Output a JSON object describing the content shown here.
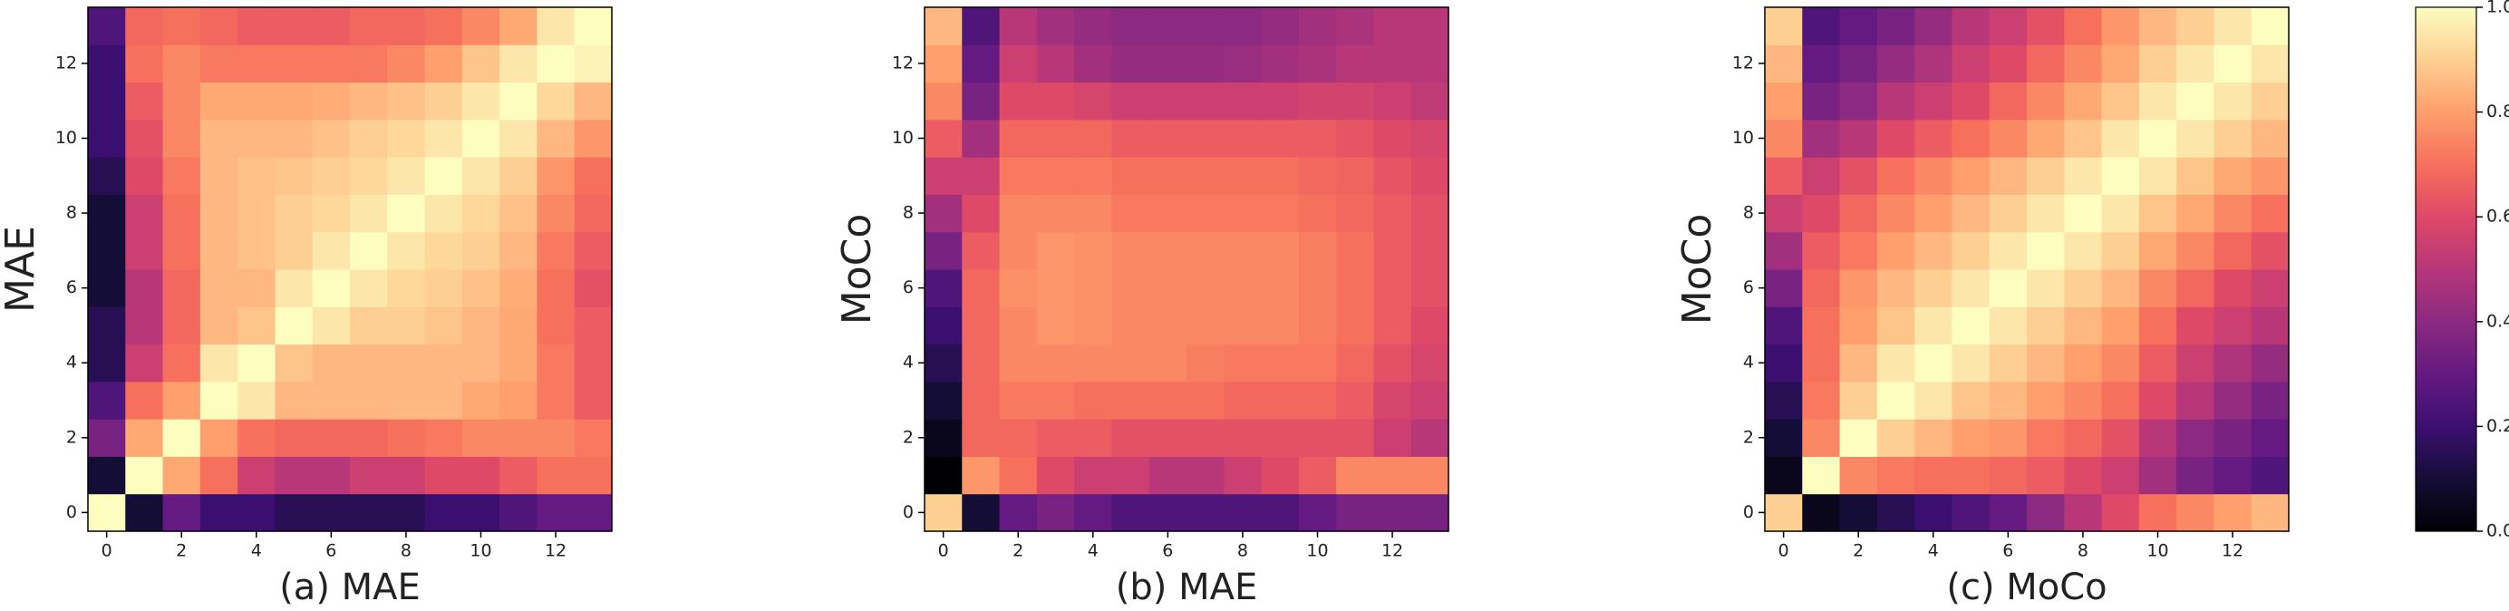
{
  "chart_data": [
    {
      "type": "heatmap",
      "title": "(a) MAE",
      "y_label": "MAE",
      "xlim": [
        -0.5,
        13.5
      ],
      "ylim": [
        -0.5,
        13.5
      ],
      "xticks": [
        0,
        2,
        4,
        6,
        8,
        10,
        12
      ],
      "yticks": [
        0,
        2,
        4,
        6,
        8,
        10,
        12
      ],
      "values": [
        [
          1.0,
          0.1,
          0.3,
          0.2,
          0.2,
          0.15,
          0.15,
          0.15,
          0.15,
          0.2,
          0.2,
          0.25,
          0.3,
          0.3
        ],
        [
          0.1,
          1.0,
          0.82,
          0.7,
          0.55,
          0.5,
          0.5,
          0.55,
          0.55,
          0.6,
          0.6,
          0.65,
          0.7,
          0.7
        ],
        [
          0.35,
          0.82,
          1.0,
          0.8,
          0.7,
          0.68,
          0.68,
          0.68,
          0.7,
          0.72,
          0.75,
          0.75,
          0.75,
          0.72
        ],
        [
          0.25,
          0.7,
          0.8,
          1.0,
          0.95,
          0.85,
          0.85,
          0.85,
          0.85,
          0.85,
          0.82,
          0.8,
          0.72,
          0.65
        ],
        [
          0.15,
          0.55,
          0.7,
          0.95,
          1.0,
          0.88,
          0.85,
          0.85,
          0.85,
          0.85,
          0.85,
          0.82,
          0.72,
          0.65
        ],
        [
          0.15,
          0.5,
          0.68,
          0.85,
          0.88,
          1.0,
          0.95,
          0.9,
          0.9,
          0.88,
          0.85,
          0.82,
          0.7,
          0.65
        ],
        [
          0.1,
          0.5,
          0.68,
          0.85,
          0.85,
          0.95,
          1.0,
          0.95,
          0.92,
          0.9,
          0.87,
          0.83,
          0.7,
          0.62
        ],
        [
          0.1,
          0.55,
          0.7,
          0.85,
          0.87,
          0.9,
          0.95,
          1.0,
          0.95,
          0.92,
          0.9,
          0.85,
          0.72,
          0.65
        ],
        [
          0.1,
          0.55,
          0.7,
          0.85,
          0.87,
          0.9,
          0.92,
          0.95,
          1.0,
          0.95,
          0.92,
          0.87,
          0.75,
          0.68
        ],
        [
          0.15,
          0.6,
          0.72,
          0.85,
          0.87,
          0.88,
          0.9,
          0.92,
          0.95,
          1.0,
          0.95,
          0.9,
          0.78,
          0.7
        ],
        [
          0.2,
          0.62,
          0.75,
          0.85,
          0.85,
          0.85,
          0.87,
          0.9,
          0.92,
          0.95,
          1.0,
          0.95,
          0.85,
          0.78
        ],
        [
          0.2,
          0.65,
          0.75,
          0.82,
          0.82,
          0.82,
          0.83,
          0.85,
          0.87,
          0.9,
          0.95,
          1.0,
          0.92,
          0.85
        ],
        [
          0.2,
          0.7,
          0.75,
          0.72,
          0.72,
          0.72,
          0.72,
          0.72,
          0.75,
          0.8,
          0.88,
          0.95,
          1.0,
          0.98
        ],
        [
          0.25,
          0.68,
          0.7,
          0.68,
          0.65,
          0.65,
          0.65,
          0.68,
          0.68,
          0.7,
          0.75,
          0.82,
          0.95,
          1.0
        ]
      ]
    },
    {
      "type": "heatmap",
      "title": "(b) MAE",
      "y_label": "MoCo",
      "xlim": [
        -0.5,
        13.5
      ],
      "ylim": [
        -0.5,
        13.5
      ],
      "xticks": [
        0,
        2,
        4,
        6,
        8,
        10,
        12
      ],
      "yticks": [
        0,
        2,
        4,
        6,
        8,
        10,
        12
      ],
      "values": [
        [
          0.9,
          0.1,
          0.3,
          0.35,
          0.3,
          0.25,
          0.25,
          0.25,
          0.25,
          0.25,
          0.3,
          0.35,
          0.35,
          0.35
        ],
        [
          0.0,
          0.78,
          0.7,
          0.6,
          0.55,
          0.55,
          0.5,
          0.5,
          0.55,
          0.6,
          0.65,
          0.75,
          0.75,
          0.75
        ],
        [
          0.05,
          0.68,
          0.68,
          0.65,
          0.65,
          0.62,
          0.62,
          0.62,
          0.62,
          0.62,
          0.62,
          0.62,
          0.55,
          0.5
        ],
        [
          0.1,
          0.68,
          0.72,
          0.72,
          0.7,
          0.7,
          0.7,
          0.7,
          0.68,
          0.68,
          0.68,
          0.65,
          0.58,
          0.55
        ],
        [
          0.15,
          0.68,
          0.75,
          0.75,
          0.75,
          0.75,
          0.75,
          0.73,
          0.72,
          0.72,
          0.72,
          0.68,
          0.62,
          0.58
        ],
        [
          0.2,
          0.68,
          0.75,
          0.78,
          0.77,
          0.75,
          0.75,
          0.75,
          0.75,
          0.75,
          0.73,
          0.7,
          0.65,
          0.6
        ],
        [
          0.25,
          0.68,
          0.77,
          0.78,
          0.77,
          0.75,
          0.75,
          0.75,
          0.75,
          0.75,
          0.73,
          0.7,
          0.65,
          0.62
        ],
        [
          0.35,
          0.65,
          0.75,
          0.78,
          0.77,
          0.75,
          0.75,
          0.75,
          0.75,
          0.75,
          0.73,
          0.7,
          0.65,
          0.62
        ],
        [
          0.45,
          0.6,
          0.75,
          0.75,
          0.75,
          0.72,
          0.72,
          0.72,
          0.72,
          0.72,
          0.7,
          0.68,
          0.65,
          0.62
        ],
        [
          0.55,
          0.55,
          0.72,
          0.72,
          0.72,
          0.7,
          0.7,
          0.7,
          0.7,
          0.7,
          0.68,
          0.67,
          0.63,
          0.6
        ],
        [
          0.65,
          0.45,
          0.68,
          0.68,
          0.68,
          0.65,
          0.65,
          0.65,
          0.65,
          0.65,
          0.65,
          0.63,
          0.6,
          0.58
        ],
        [
          0.75,
          0.35,
          0.6,
          0.6,
          0.58,
          0.55,
          0.55,
          0.55,
          0.55,
          0.55,
          0.57,
          0.57,
          0.55,
          0.52
        ],
        [
          0.8,
          0.3,
          0.55,
          0.5,
          0.45,
          0.42,
          0.42,
          0.42,
          0.43,
          0.45,
          0.47,
          0.5,
          0.5,
          0.5
        ],
        [
          0.85,
          0.25,
          0.5,
          0.45,
          0.42,
          0.4,
          0.4,
          0.4,
          0.4,
          0.42,
          0.45,
          0.47,
          0.5,
          0.5
        ]
      ]
    },
    {
      "type": "heatmap",
      "title": "(c) MoCo",
      "y_label": "MoCo",
      "xlim": [
        -0.5,
        13.5
      ],
      "ylim": [
        -0.5,
        13.5
      ],
      "xticks": [
        0,
        2,
        4,
        6,
        8,
        10,
        12
      ],
      "yticks": [
        0,
        2,
        4,
        6,
        8,
        10,
        12
      ],
      "values": [
        [
          0.9,
          0.05,
          0.1,
          0.15,
          0.2,
          0.25,
          0.3,
          0.4,
          0.5,
          0.6,
          0.7,
          0.75,
          0.8,
          0.85
        ],
        [
          0.05,
          1.0,
          0.75,
          0.72,
          0.7,
          0.7,
          0.68,
          0.65,
          0.6,
          0.55,
          0.45,
          0.35,
          0.3,
          0.25
        ],
        [
          0.1,
          0.75,
          1.0,
          0.9,
          0.85,
          0.8,
          0.78,
          0.72,
          0.68,
          0.62,
          0.5,
          0.4,
          0.35,
          0.3
        ],
        [
          0.15,
          0.72,
          0.9,
          1.0,
          0.95,
          0.88,
          0.85,
          0.8,
          0.75,
          0.7,
          0.6,
          0.5,
          0.42,
          0.35
        ],
        [
          0.2,
          0.7,
          0.85,
          0.95,
          1.0,
          0.95,
          0.9,
          0.85,
          0.8,
          0.75,
          0.65,
          0.55,
          0.48,
          0.42
        ],
        [
          0.25,
          0.7,
          0.8,
          0.88,
          0.95,
          1.0,
          0.95,
          0.9,
          0.85,
          0.8,
          0.7,
          0.6,
          0.55,
          0.5
        ],
        [
          0.35,
          0.68,
          0.78,
          0.85,
          0.9,
          0.95,
          1.0,
          0.95,
          0.9,
          0.85,
          0.75,
          0.68,
          0.6,
          0.55
        ],
        [
          0.45,
          0.65,
          0.72,
          0.8,
          0.85,
          0.9,
          0.95,
          1.0,
          0.95,
          0.9,
          0.82,
          0.75,
          0.68,
          0.62
        ],
        [
          0.55,
          0.6,
          0.68,
          0.75,
          0.8,
          0.85,
          0.9,
          0.95,
          1.0,
          0.95,
          0.88,
          0.82,
          0.75,
          0.7
        ],
        [
          0.65,
          0.55,
          0.62,
          0.7,
          0.75,
          0.8,
          0.85,
          0.9,
          0.95,
          1.0,
          0.95,
          0.88,
          0.82,
          0.78
        ],
        [
          0.75,
          0.45,
          0.5,
          0.6,
          0.65,
          0.7,
          0.75,
          0.82,
          0.88,
          0.95,
          1.0,
          0.95,
          0.9,
          0.85
        ],
        [
          0.8,
          0.35,
          0.4,
          0.5,
          0.55,
          0.6,
          0.68,
          0.75,
          0.82,
          0.88,
          0.95,
          1.0,
          0.95,
          0.9
        ],
        [
          0.85,
          0.3,
          0.35,
          0.42,
          0.48,
          0.55,
          0.6,
          0.68,
          0.75,
          0.82,
          0.9,
          0.95,
          1.0,
          0.95
        ],
        [
          0.9,
          0.25,
          0.3,
          0.35,
          0.42,
          0.5,
          0.55,
          0.62,
          0.7,
          0.78,
          0.85,
          0.9,
          0.95,
          1.0
        ]
      ]
    },
    {
      "type": "colorbar",
      "colormap": "magma",
      "ylim": [
        0,
        1
      ],
      "yticks": [
        {
          "value": 0,
          "label": "0.0"
        },
        {
          "value": 0.2,
          "label": "0.2"
        },
        {
          "value": 0.4,
          "label": "0.4"
        },
        {
          "value": 0.6,
          "label": "0.6"
        },
        {
          "value": 0.8,
          "label": "0.8"
        },
        {
          "value": 1,
          "label": "1.0"
        }
      ]
    }
  ]
}
